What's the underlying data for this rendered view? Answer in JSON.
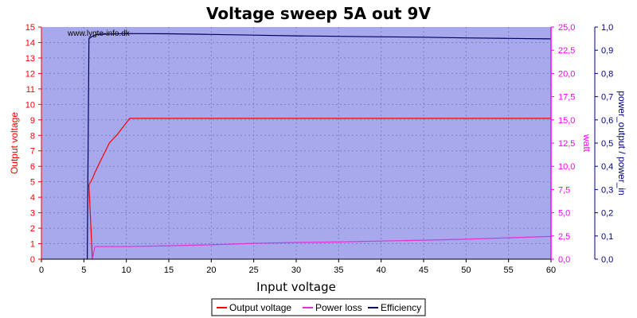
{
  "chart_data": {
    "type": "line",
    "title": "Voltage sweep 5A out 9V",
    "watermark": "www.lygte-info.dk",
    "xlabel": "Input voltage",
    "xlim": [
      0,
      60
    ],
    "x_ticks": [
      "0",
      "5",
      "10",
      "15",
      "20",
      "25",
      "30",
      "35",
      "40",
      "45",
      "50",
      "55",
      "60"
    ],
    "y_left": {
      "label": "Output voltage",
      "lim": [
        0,
        15
      ],
      "ticks": [
        "0",
        "1",
        "2",
        "3",
        "4",
        "5",
        "6",
        "7",
        "8",
        "9",
        "10",
        "11",
        "12",
        "13",
        "14",
        "15"
      ],
      "color": "#ff0000"
    },
    "y_right1": {
      "label": "watt",
      "lim": [
        0,
        25
      ],
      "ticks": [
        "0,0",
        "2,5",
        "5,0",
        "7,5",
        "10,0",
        "12,5",
        "15,0",
        "17,5",
        "20,0",
        "22,5",
        "25,0"
      ],
      "color": "#ff00ff"
    },
    "y_right2": {
      "label": "power_output / power_in",
      "lim": [
        0,
        1
      ],
      "ticks": [
        "0,0",
        "0,1",
        "0,2",
        "0,3",
        "0,4",
        "0,5",
        "0,6",
        "0,7",
        "0,8",
        "0,9",
        "1,0"
      ],
      "color": "#000080"
    },
    "grid": true,
    "legend_position": "bottom",
    "colors": {
      "plot_bg": "#a8a8ec",
      "grid": "#8080c8"
    },
    "series": [
      {
        "name": "Output voltage",
        "axis": "y_left",
        "color": "#ff0000",
        "x": [
          6.0,
          5.6,
          6.0,
          6.3,
          7.0,
          8.0,
          9.0,
          10.4,
          15,
          20,
          30,
          40,
          50,
          60
        ],
        "y": [
          0,
          4.8,
          5.2,
          5.6,
          6.4,
          7.5,
          8.1,
          9.1,
          9.1,
          9.1,
          9.1,
          9.1,
          9.1,
          9.1
        ]
      },
      {
        "name": "Power loss",
        "axis": "y_right1",
        "color": "#e030d8",
        "x": [
          6.0,
          6.3,
          10,
          15,
          20,
          25,
          30,
          35,
          40,
          45,
          50,
          55,
          60
        ],
        "y": [
          0.0,
          1.35,
          1.35,
          1.45,
          1.55,
          1.7,
          1.8,
          1.85,
          1.95,
          2.05,
          2.15,
          2.3,
          2.45
        ]
      },
      {
        "name": "Efficiency",
        "axis": "y_right2",
        "color": "#000060",
        "x": [
          5.4,
          5.6,
          6.0,
          6.5,
          10,
          15,
          20,
          25,
          30,
          35,
          40,
          45,
          50,
          55,
          60
        ],
        "y": [
          0.0,
          0.95,
          0.96,
          0.968,
          0.972,
          0.971,
          0.968,
          0.965,
          0.962,
          0.96,
          0.958,
          0.956,
          0.953,
          0.951,
          0.949
        ]
      }
    ]
  }
}
